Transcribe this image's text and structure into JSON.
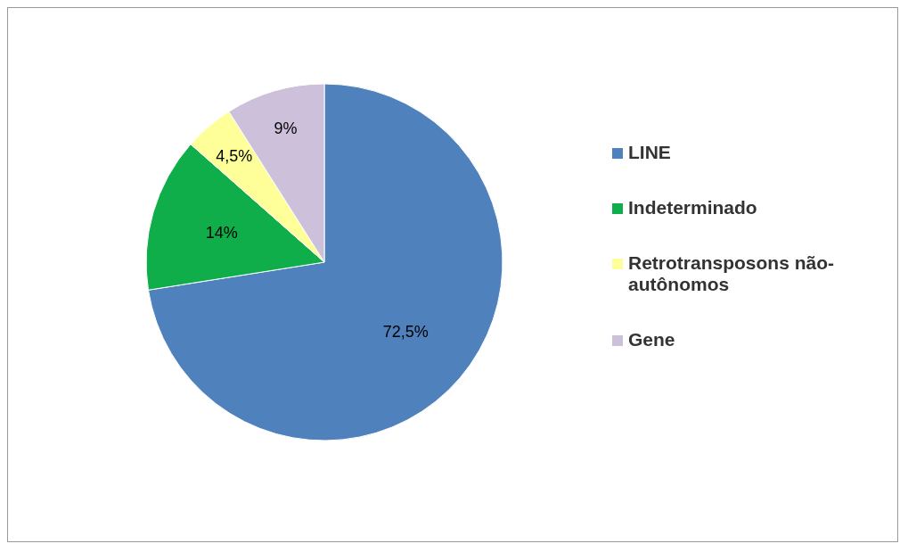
{
  "chart_data": {
    "type": "pie",
    "categories": [
      "LINE",
      "Indeterminado",
      "Retrotransposons não-autônomos",
      "Gene"
    ],
    "values": [
      72.5,
      14,
      4.5,
      9
    ],
    "colors": [
      "#4f81bd",
      "#0fae4a",
      "#ffff99",
      "#ccc0da"
    ],
    "value_labels": [
      "72,5%",
      "14%",
      "4,5%",
      "9%"
    ],
    "legend": "right"
  }
}
